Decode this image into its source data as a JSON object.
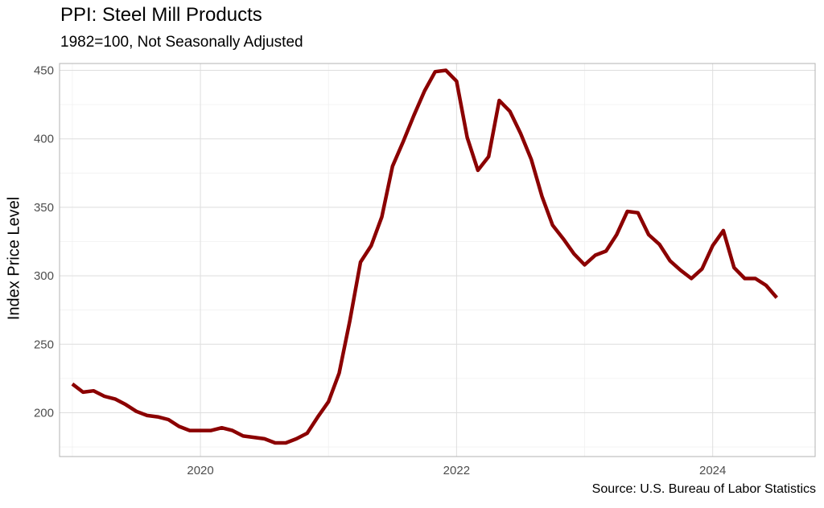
{
  "chart_data": {
    "type": "line",
    "title": "PPI: Steel Mill Products",
    "subtitle": "1982=100, Not Seasonally Adjusted",
    "ylabel": "Index Price Level",
    "xlabel": "",
    "source": "Source: U.S. Bureau of Labor Statistics",
    "line_color": "#8b0000",
    "grid": true,
    "x_ticks": [
      "2020",
      "2022",
      "2024"
    ],
    "y_ticks": [
      "200",
      "250",
      "300",
      "350",
      "400",
      "450"
    ],
    "xlim": [
      2018.9,
      2024.8
    ],
    "ylim": [
      168,
      455
    ],
    "series": [
      {
        "x": [
          "2019-01",
          "2019-02",
          "2019-03",
          "2019-04",
          "2019-05",
          "2019-06",
          "2019-07",
          "2019-08",
          "2019-09",
          "2019-10",
          "2019-11",
          "2019-12",
          "2020-01",
          "2020-02",
          "2020-03",
          "2020-04",
          "2020-05",
          "2020-06",
          "2020-07",
          "2020-08",
          "2020-09",
          "2020-10",
          "2020-11",
          "2020-12",
          "2021-01",
          "2021-02",
          "2021-03",
          "2021-04",
          "2021-05",
          "2021-06",
          "2021-07",
          "2021-08",
          "2021-09",
          "2021-10",
          "2021-11",
          "2021-12",
          "2022-01",
          "2022-02",
          "2022-03",
          "2022-04",
          "2022-05",
          "2022-06",
          "2022-07",
          "2022-08",
          "2022-09",
          "2022-10",
          "2022-11",
          "2022-12",
          "2023-01",
          "2023-02",
          "2023-03",
          "2023-04",
          "2023-05",
          "2023-06",
          "2023-07",
          "2023-08",
          "2023-09",
          "2023-10",
          "2023-11",
          "2023-12",
          "2024-01",
          "2024-02",
          "2024-03",
          "2024-04",
          "2024-05",
          "2024-06",
          "2024-07"
        ],
        "values": [
          221,
          215,
          216,
          212,
          210,
          206,
          201,
          198,
          197,
          195,
          190,
          187,
          187,
          187,
          189,
          187,
          183,
          182,
          181,
          178,
          178,
          181,
          185,
          197,
          208,
          229,
          267,
          310,
          322,
          343,
          380,
          398,
          417,
          435,
          449,
          450,
          442,
          401,
          377,
          387,
          428,
          420,
          404,
          385,
          358,
          337,
          327,
          316,
          308,
          315,
          318,
          330,
          347,
          346,
          330,
          323,
          311,
          304,
          298,
          305,
          322,
          333,
          306,
          298,
          298,
          293,
          284
        ]
      }
    ]
  }
}
